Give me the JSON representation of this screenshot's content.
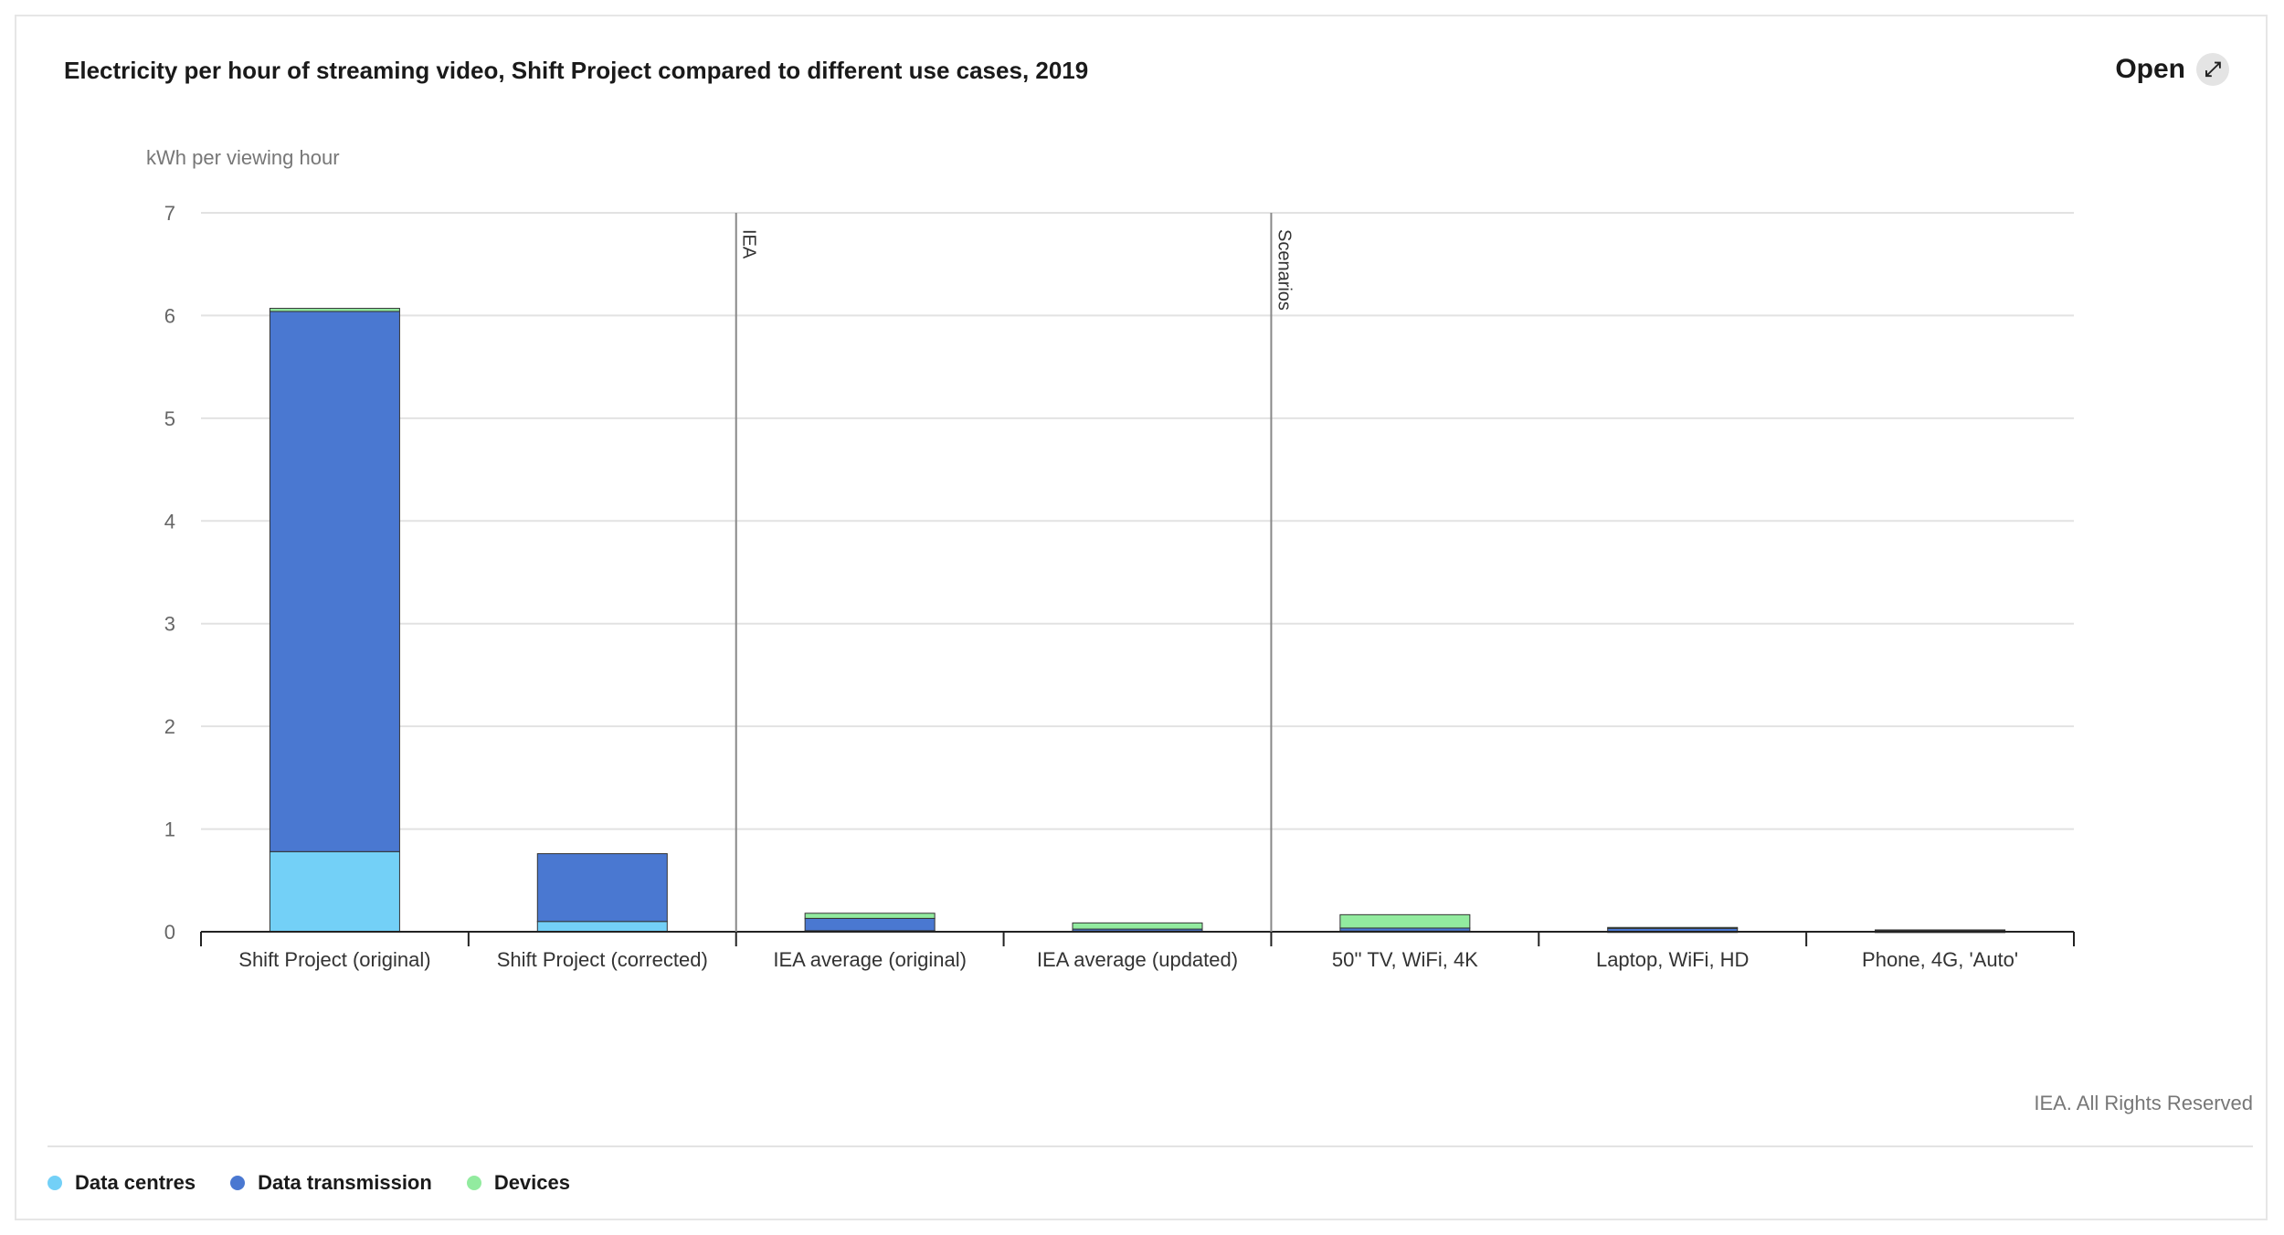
{
  "header": {
    "title": "Electricity per hour of streaming video, Shift Project compared to different use cases, 2019",
    "open_label": "Open",
    "open_icon": "expand-icon"
  },
  "footer": {
    "source": "IEA. All Rights Reserved"
  },
  "legend": [
    {
      "label": "Data centres",
      "color": "#73d0f7"
    },
    {
      "label": "Data transmission",
      "color": "#4a78d1"
    },
    {
      "label": "Devices",
      "color": "#92eb9f"
    }
  ],
  "chart_data": {
    "type": "bar",
    "stacked": true,
    "ylabel": "kWh per viewing hour",
    "ylim": [
      0,
      7
    ],
    "yticks": [
      0,
      1,
      2,
      3,
      4,
      5,
      6,
      7
    ],
    "grid": true,
    "categories": [
      "Shift Project (original)",
      "Shift Project (corrected)",
      "IEA average (original)",
      "IEA average (updated)",
      "50'' TV, WiFi, 4K",
      "Laptop, WiFi, HD",
      "Phone, 4G, 'Auto'"
    ],
    "series": [
      {
        "name": "Data centres",
        "color": "#73d0f7",
        "values": [
          0.78,
          0.1,
          0.01,
          0.006,
          0.006,
          0.002,
          0.001
        ]
      },
      {
        "name": "Data transmission",
        "color": "#4a78d1",
        "values": [
          5.26,
          0.66,
          0.12,
          0.02,
          0.03,
          0.03,
          0.015
        ]
      },
      {
        "name": "Devices",
        "color": "#92eb9f",
        "values": [
          0.03,
          0.0,
          0.05,
          0.06,
          0.13,
          0.01,
          0.002
        ]
      }
    ],
    "separators": [
      {
        "after_category": 1,
        "label": "IEA"
      },
      {
        "after_category": 3,
        "label": "Scenarios"
      }
    ]
  }
}
